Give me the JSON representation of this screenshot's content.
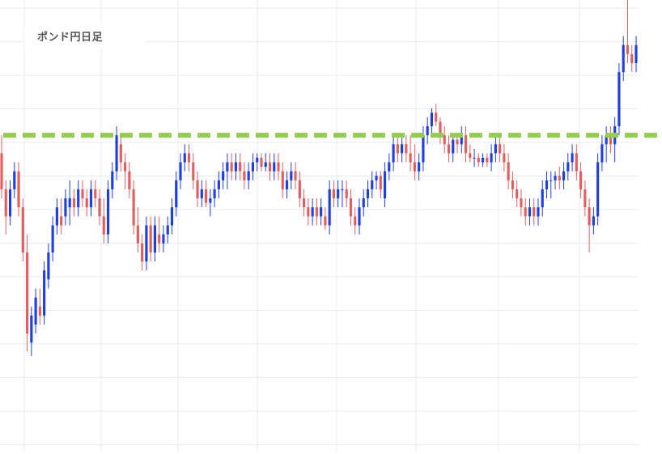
{
  "chart_data": {
    "type": "candlestick",
    "title": "ポンド円日足",
    "xlabel": "",
    "ylabel": "",
    "ylim": [
      0,
      100
    ],
    "grid": true,
    "colors": {
      "up": "#1f3fe0",
      "down": "#e06060",
      "grid": "#e4eef2",
      "level": "#92cd50"
    },
    "horizontal_level": 70,
    "candles": [
      [
        66,
        70,
        56,
        58
      ],
      [
        58,
        60,
        48,
        52
      ],
      [
        52,
        60,
        50,
        58
      ],
      [
        58,
        64,
        56,
        62
      ],
      [
        62,
        64,
        52,
        54
      ],
      [
        54,
        56,
        42,
        44
      ],
      [
        44,
        48,
        22,
        26
      ],
      [
        24,
        32,
        21,
        30
      ],
      [
        28,
        36,
        26,
        34
      ],
      [
        32,
        36,
        28,
        30
      ],
      [
        30,
        42,
        28,
        40
      ],
      [
        38,
        46,
        36,
        44
      ],
      [
        44,
        52,
        42,
        50
      ],
      [
        50,
        56,
        48,
        54
      ],
      [
        52,
        56,
        48,
        50
      ],
      [
        52,
        58,
        50,
        56
      ],
      [
        54,
        60,
        50,
        56
      ],
      [
        56,
        58,
        52,
        54
      ],
      [
        54,
        60,
        52,
        58
      ],
      [
        58,
        60,
        54,
        56
      ],
      [
        56,
        58,
        52,
        54
      ],
      [
        54,
        60,
        52,
        58
      ],
      [
        58,
        60,
        54,
        56
      ],
      [
        56,
        58,
        50,
        52
      ],
      [
        52,
        56,
        46,
        48
      ],
      [
        48,
        60,
        46,
        58
      ],
      [
        58,
        64,
        56,
        62
      ],
      [
        62,
        72,
        60,
        70
      ],
      [
        68,
        70,
        62,
        64
      ],
      [
        64,
        66,
        58,
        62
      ],
      [
        62,
        64,
        56,
        58
      ],
      [
        58,
        60,
        48,
        50
      ],
      [
        50,
        54,
        44,
        46
      ],
      [
        46,
        48,
        40,
        42
      ],
      [
        42,
        52,
        40,
        50
      ],
      [
        50,
        52,
        42,
        44
      ],
      [
        44,
        52,
        42,
        50
      ],
      [
        48,
        52,
        44,
        46
      ],
      [
        46,
        50,
        44,
        48
      ],
      [
        48,
        52,
        46,
        50
      ],
      [
        50,
        56,
        48,
        54
      ],
      [
        54,
        62,
        52,
        60
      ],
      [
        60,
        66,
        58,
        64
      ],
      [
        64,
        68,
        62,
        66
      ],
      [
        66,
        68,
        62,
        64
      ],
      [
        64,
        66,
        58,
        60
      ],
      [
        60,
        62,
        54,
        56
      ],
      [
        56,
        60,
        54,
        58
      ],
      [
        58,
        60,
        54,
        55
      ],
      [
        55,
        58,
        52,
        56
      ],
      [
        56,
        60,
        54,
        58
      ],
      [
        58,
        62,
        56,
        60
      ],
      [
        60,
        64,
        58,
        62
      ],
      [
        62,
        66,
        58,
        64
      ],
      [
        64,
        66,
        60,
        62
      ],
      [
        62,
        66,
        60,
        64
      ],
      [
        64,
        66,
        60,
        62
      ],
      [
        62,
        64,
        58,
        60
      ],
      [
        60,
        64,
        58,
        62
      ],
      [
        62,
        66,
        60,
        64
      ],
      [
        64,
        66,
        62,
        65
      ],
      [
        65,
        66,
        62,
        63
      ],
      [
        63,
        66,
        62,
        64
      ],
      [
        64,
        66,
        60,
        62
      ],
      [
        62,
        66,
        60,
        64
      ],
      [
        64,
        66,
        60,
        62
      ],
      [
        62,
        64,
        56,
        58
      ],
      [
        58,
        62,
        56,
        60
      ],
      [
        60,
        64,
        58,
        62
      ],
      [
        62,
        64,
        58,
        60
      ],
      [
        60,
        62,
        54,
        56
      ],
      [
        56,
        58,
        52,
        54
      ],
      [
        54,
        56,
        50,
        52
      ],
      [
        52,
        56,
        50,
        54
      ],
      [
        54,
        56,
        50,
        52
      ],
      [
        52,
        56,
        50,
        54
      ],
      [
        52,
        54,
        49,
        50
      ],
      [
        50,
        60,
        48,
        58
      ],
      [
        58,
        60,
        54,
        56
      ],
      [
        56,
        60,
        54,
        58
      ],
      [
        58,
        60,
        54,
        58
      ],
      [
        58,
        60,
        54,
        56
      ],
      [
        56,
        58,
        50,
        52
      ],
      [
        52,
        54,
        48,
        50
      ],
      [
        50,
        56,
        48,
        54
      ],
      [
        54,
        58,
        52,
        56
      ],
      [
        56,
        60,
        54,
        58
      ],
      [
        58,
        62,
        56,
        60
      ],
      [
        60,
        62,
        58,
        61
      ],
      [
        61,
        62,
        56,
        58
      ],
      [
        56,
        64,
        54,
        62
      ],
      [
        62,
        66,
        60,
        64
      ],
      [
        64,
        70,
        62,
        68
      ],
      [
        68,
        70,
        64,
        66
      ],
      [
        66,
        70,
        64,
        68
      ],
      [
        68,
        70,
        64,
        66
      ],
      [
        66,
        70,
        62,
        64
      ],
      [
        64,
        68,
        60,
        62
      ],
      [
        62,
        66,
        60,
        64
      ],
      [
        64,
        72,
        62,
        70
      ],
      [
        70,
        74,
        68,
        72
      ],
      [
        72,
        76,
        70,
        75
      ],
      [
        75,
        77,
        72,
        73
      ],
      [
        73,
        74,
        68,
        70
      ],
      [
        70,
        72,
        66,
        68
      ],
      [
        68,
        70,
        64,
        66
      ],
      [
        66,
        70,
        64,
        69
      ],
      [
        69,
        70,
        66,
        68
      ],
      [
        68,
        72,
        66,
        70
      ],
      [
        70,
        72,
        64,
        66
      ],
      [
        66,
        68,
        64,
        65
      ],
      [
        65,
        67,
        63,
        65
      ],
      [
        65,
        66,
        63,
        64
      ],
      [
        64,
        66,
        63,
        65
      ],
      [
        65,
        66,
        63,
        64
      ],
      [
        64,
        68,
        62,
        66
      ],
      [
        66,
        70,
        64,
        68
      ],
      [
        68,
        70,
        64,
        66
      ],
      [
        66,
        68,
        62,
        64
      ],
      [
        64,
        66,
        58,
        60
      ],
      [
        60,
        62,
        56,
        58
      ],
      [
        58,
        60,
        54,
        56
      ],
      [
        56,
        58,
        52,
        54
      ],
      [
        54,
        56,
        50,
        52
      ],
      [
        52,
        56,
        50,
        54
      ],
      [
        54,
        56,
        50,
        52
      ],
      [
        52,
        56,
        50,
        54
      ],
      [
        54,
        60,
        52,
        58
      ],
      [
        58,
        62,
        56,
        60
      ],
      [
        60,
        62,
        56,
        60
      ],
      [
        60,
        62,
        58,
        61
      ],
      [
        61,
        63,
        58,
        60
      ],
      [
        60,
        64,
        58,
        62
      ],
      [
        62,
        66,
        60,
        64
      ],
      [
        64,
        68,
        62,
        66
      ],
      [
        66,
        68,
        60,
        62
      ],
      [
        62,
        64,
        56,
        58
      ],
      [
        58,
        60,
        52,
        54
      ],
      [
        54,
        56,
        44,
        50
      ],
      [
        50,
        54,
        48,
        52
      ],
      [
        52,
        66,
        50,
        64
      ],
      [
        64,
        70,
        62,
        68
      ],
      [
        68,
        72,
        64,
        70
      ],
      [
        70,
        72,
        66,
        68
      ],
      [
        68,
        74,
        64,
        72
      ],
      [
        72,
        86,
        70,
        84
      ],
      [
        84,
        92,
        82,
        90
      ],
      [
        90,
        104,
        86,
        88
      ],
      [
        88,
        90,
        84,
        86
      ],
      [
        86,
        92,
        84,
        90
      ]
    ]
  }
}
